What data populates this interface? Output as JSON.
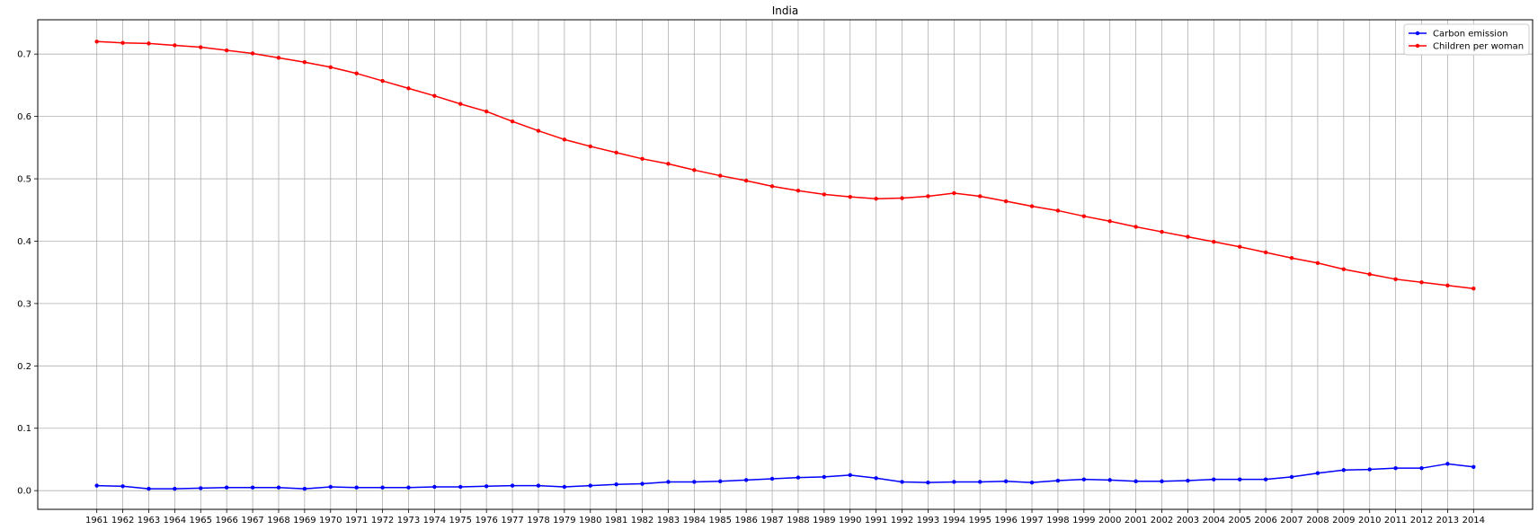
{
  "chart_data": {
    "type": "line",
    "title": "India",
    "xlabel": "",
    "ylabel": "",
    "grid": true,
    "legend_position": "top-right",
    "ylim": [
      -0.03,
      0.755
    ],
    "yticks": [
      0.0,
      0.1,
      0.2,
      0.3,
      0.4,
      0.5,
      0.6,
      0.7
    ],
    "yticklabels": [
      "0.0",
      "0.1",
      "0.2",
      "0.3",
      "0.4",
      "0.5",
      "0.6",
      "0.7"
    ],
    "x": [
      "1961",
      "1962",
      "1963",
      "1964",
      "1965",
      "1966",
      "1967",
      "1968",
      "1969",
      "1970",
      "1971",
      "1972",
      "1973",
      "1974",
      "1975",
      "1976",
      "1977",
      "1978",
      "1979",
      "1980",
      "1981",
      "1982",
      "1983",
      "1984",
      "1985",
      "1986",
      "1987",
      "1988",
      "1989",
      "1990",
      "1991",
      "1992",
      "1993",
      "1994",
      "1995",
      "1996",
      "1997",
      "1998",
      "1999",
      "2000",
      "2001",
      "2002",
      "2003",
      "2004",
      "2005",
      "2006",
      "2007",
      "2008",
      "2009",
      "2010",
      "2011",
      "2012",
      "2013",
      "2014"
    ],
    "series": [
      {
        "name": "Carbon emission",
        "color": "#0000ff",
        "values": [
          0.008,
          0.007,
          0.003,
          0.003,
          0.004,
          0.005,
          0.005,
          0.005,
          0.003,
          0.006,
          0.005,
          0.005,
          0.005,
          0.006,
          0.006,
          0.007,
          0.008,
          0.008,
          0.006,
          0.008,
          0.01,
          0.011,
          0.014,
          0.014,
          0.015,
          0.017,
          0.019,
          0.021,
          0.022,
          0.025,
          0.02,
          0.014,
          0.013,
          0.014,
          0.014,
          0.015,
          0.013,
          0.016,
          0.018,
          0.017,
          0.015,
          0.015,
          0.016,
          0.018,
          0.018,
          0.018,
          0.022,
          0.028,
          0.033,
          0.034,
          0.036,
          0.036,
          0.043,
          0.038
        ]
      },
      {
        "name": "Children per woman",
        "color": "#ff0000",
        "values": [
          0.72,
          0.718,
          0.717,
          0.714,
          0.711,
          0.706,
          0.701,
          0.694,
          0.687,
          0.679,
          0.669,
          0.657,
          0.645,
          0.633,
          0.62,
          0.608,
          0.592,
          0.577,
          0.563,
          0.552,
          0.542,
          0.532,
          0.524,
          0.514,
          0.505,
          0.497,
          0.488,
          0.481,
          0.475,
          0.471,
          0.468,
          0.469,
          0.472,
          0.477,
          0.472,
          0.464,
          0.456,
          0.449,
          0.44,
          0.432,
          0.423,
          0.415,
          0.407,
          0.399,
          0.391,
          0.382,
          0.373,
          0.365,
          0.355,
          0.347,
          0.339,
          0.334,
          0.329,
          0.324
        ]
      }
    ]
  }
}
